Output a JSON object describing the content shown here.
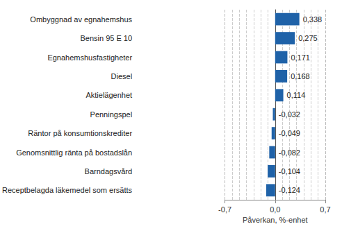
{
  "chart_data": {
    "type": "bar",
    "orientation": "horizontal",
    "x_label": "Påverkan, %-enhet",
    "categories": [
      "Ombyggnad av egnahemshus",
      "Bensin 95 E 10",
      "Egnahemshusfastigheter",
      "Diesel",
      "Aktielägenhet",
      "Penningspel",
      "Räntor på konsumtionskrediter",
      "Genomsnittlig ränta på bostadslån",
      "Barndagsvård",
      "Receptbelagda läkemedel som ersätts"
    ],
    "values": [
      0.338,
      0.275,
      0.171,
      0.168,
      0.114,
      -0.032,
      -0.049,
      -0.082,
      -0.104,
      -0.124
    ],
    "value_labels": [
      "0,338",
      "0,275",
      "0,171",
      "0,168",
      "0,114",
      "-0,032",
      "-0,049",
      "-0,082",
      "-0,104",
      "-0,124"
    ],
    "color": "#1f62a8",
    "xlim": [
      -0.7,
      0.7
    ],
    "xticks": [
      {
        "value": -0.7,
        "label": "-0,7"
      },
      {
        "value": 0,
        "label": "0,0"
      },
      {
        "value": 0.7,
        "label": "0,7"
      }
    ],
    "grid": true,
    "data_labels": true
  }
}
